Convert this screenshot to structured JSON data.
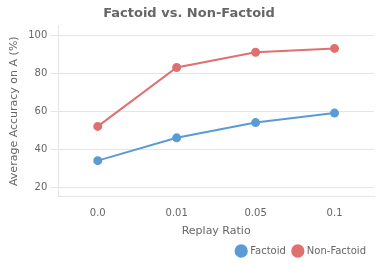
{
  "chart_data": {
    "type": "line",
    "title": "Factoid vs. Non-Factoid",
    "x_label": "Replay Ratio",
    "y_label": "Average Accuracy on A (%)",
    "categories": [
      "0.0",
      "0.01",
      "0.05",
      "0.1"
    ],
    "series": [
      {
        "name": "Factoid",
        "color": "#5b9bd5",
        "values": [
          34,
          46,
          54,
          59
        ],
        "marker": "circle"
      },
      {
        "name": "Non-Factoid",
        "color": "#e07070",
        "values": [
          52,
          83,
          91,
          93
        ],
        "marker": "circle"
      }
    ],
    "ylim": [
      15,
      105
    ],
    "yticks": [
      20,
      40,
      60,
      80,
      100
    ],
    "grid": true,
    "legend": "lower right"
  }
}
